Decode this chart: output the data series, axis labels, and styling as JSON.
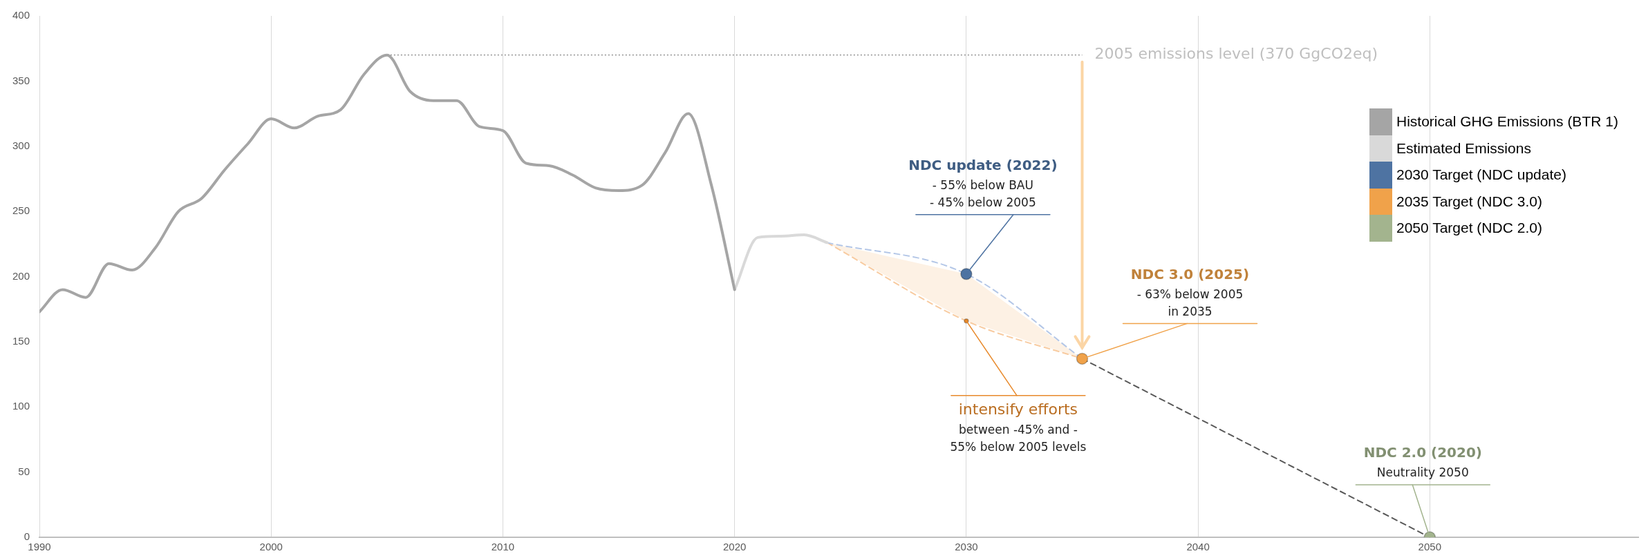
{
  "chart_data": {
    "type": "line",
    "xlim": [
      1990,
      2059
    ],
    "xticks": [
      1990,
      2000,
      2010,
      2020,
      2030,
      2040,
      2050
    ],
    "ylim": [
      0,
      400
    ],
    "yticks": [
      0,
      50,
      100,
      150,
      200,
      250,
      300,
      350,
      400
    ],
    "grid": "x",
    "legend": "right",
    "series": [
      {
        "name": "Historical GHG Emissions (BTR 1)",
        "color": "#a5a5a5",
        "x": [
          1990,
          1991,
          1992,
          1993,
          1994,
          1995,
          1996,
          1997,
          1998,
          1999,
          2000,
          2001,
          2002,
          2003,
          2004,
          2005,
          2006,
          2007,
          2008,
          2009,
          2010,
          2011,
          2012,
          2013,
          2014,
          2015,
          2016,
          2017,
          2018,
          2019,
          2020
        ],
        "values": [
          173,
          190,
          184,
          210,
          205,
          222,
          250,
          260,
          282,
          302,
          321,
          314,
          323,
          328,
          355,
          370,
          342,
          335,
          335,
          315,
          312,
          287,
          285,
          278,
          268,
          266,
          270,
          295,
          325,
          270,
          190
        ]
      },
      {
        "name": "Estimated Emissions",
        "color": "#d9d9d9",
        "x": [
          2020,
          2021,
          2022,
          2023,
          2024
        ],
        "values": [
          190,
          230,
          231,
          232,
          226
        ]
      },
      {
        "color": "#b4c7e7",
        "line_style": "dashed",
        "x": [
          2024,
          2030,
          2035
        ],
        "values": [
          226,
          202,
          137
        ],
        "lower": [
          226,
          166,
          137
        ],
        "upper": [
          226,
          202,
          137
        ]
      },
      {
        "color": "#f8cba0",
        "line_style": "dashed",
        "x": [
          2024,
          2030,
          2035
        ],
        "values": [
          226,
          166,
          137
        ]
      },
      {
        "color": "#595959",
        "line_style": "dashed",
        "x": [
          2035,
          2050
        ],
        "values": [
          137,
          0
        ]
      },
      {
        "name": "2030 Target (NDC update)",
        "type": "scatter",
        "marker": "circle",
        "color": "#4e73a2",
        "x": [
          2030
        ],
        "values": [
          202
        ]
      },
      {
        "type": "scatter",
        "marker": "circle",
        "color": "#e8892a",
        "x": [
          2030
        ],
        "values": [
          166
        ]
      },
      {
        "name": "2035 Target (NDC 3.0)",
        "type": "scatter",
        "marker": "circle",
        "color": "#f0a24a",
        "x": [
          2035
        ],
        "values": [
          137
        ]
      },
      {
        "name": "2050 Target (NDC 2.0)",
        "type": "scatter",
        "marker": "circle",
        "color": "#a3b48e",
        "x": [
          2050
        ],
        "values": [
          0
        ]
      }
    ],
    "ref_lines": [
      {
        "axis": "y",
        "value": 370,
        "label": "2005 emissions level (370 GgCO2eq)",
        "color": "#7f7f7f",
        "line_style": "dotted"
      }
    ],
    "annotations": [
      {
        "text": "NDC update (2022)\n- 55% below BAU\n- 45% below 2005",
        "x": 2030,
        "y": 202
      },
      {
        "text": "intensify efforts\nbetween -45% and -\n55% below 2005 levels",
        "x": 2030,
        "y": 166
      },
      {
        "text": "NDC 3.0 (2025)\n- 63% below 2005\nin 2035",
        "x": 2035,
        "y": 137
      },
      {
        "text": "NDC 2.0 (2020)\nNeutrality 2050",
        "x": 2050,
        "y": 0
      }
    ]
  }
}
